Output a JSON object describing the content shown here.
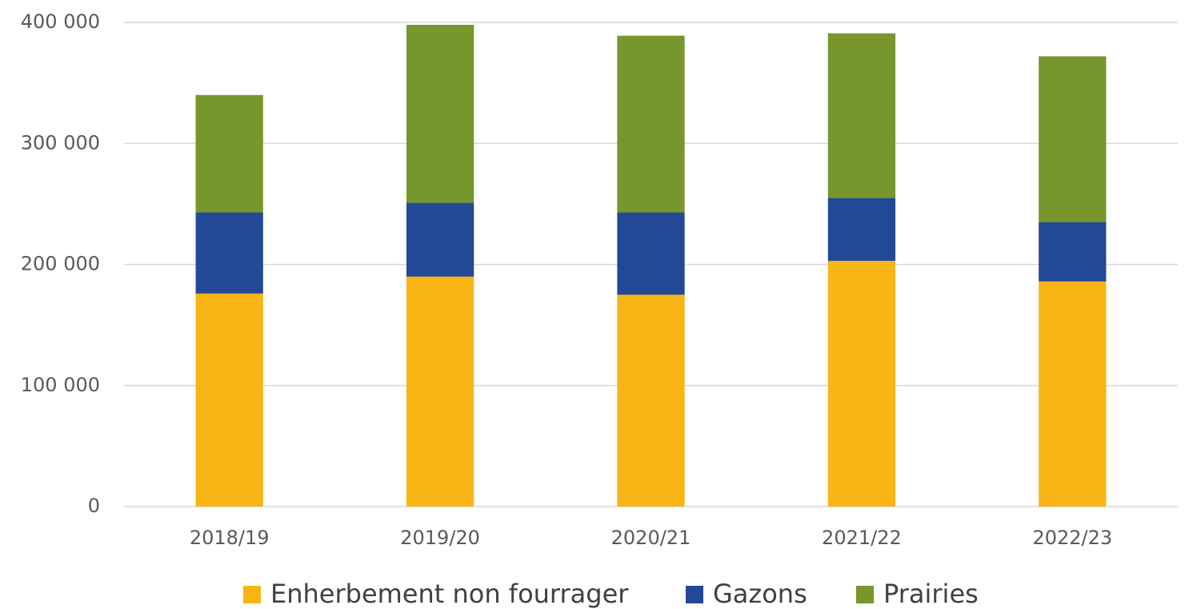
{
  "chart_data": {
    "type": "stacked_bar",
    "categories": [
      "2018/19",
      "2019/20",
      "2020/21",
      "2021/22",
      "2022/23"
    ],
    "series": [
      {
        "name": "Enherbement non fourrager",
        "color": "#F9B515",
        "values": [
          176000,
          190000,
          175000,
          203000,
          186000
        ]
      },
      {
        "name": "Gazons",
        "color": "#234896",
        "values": [
          67000,
          61000,
          68000,
          52000,
          49000
        ]
      },
      {
        "name": "Prairies",
        "color": "#77962C",
        "values": [
          97000,
          147000,
          146000,
          136000,
          137000
        ]
      }
    ],
    "ylim": [
      0,
      400000
    ],
    "yticks": [
      0,
      {
        "value": 100000,
        "label": "100 000"
      },
      {
        "value": 200000,
        "label": "200 000"
      },
      {
        "value": 300000,
        "label": "300 000"
      },
      {
        "value": 400000,
        "label": "400 000"
      }
    ],
    "grid": true,
    "legend": "bottom"
  }
}
